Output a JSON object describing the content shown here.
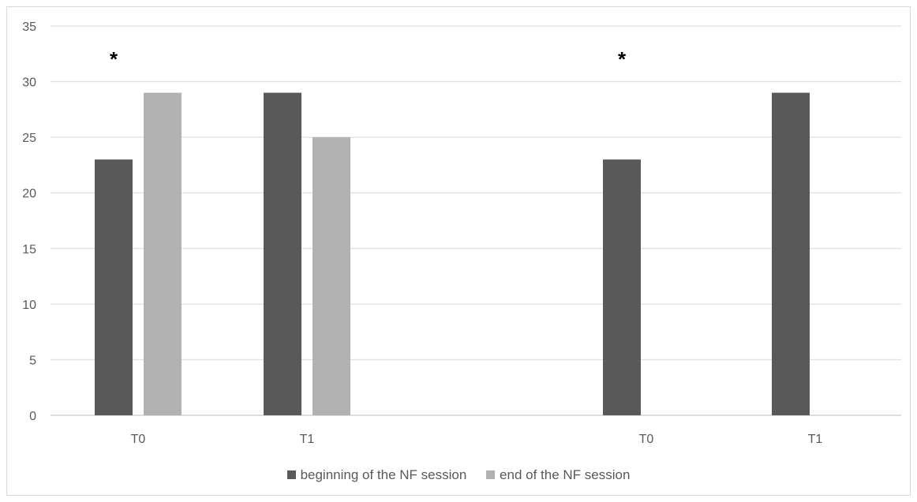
{
  "chart_data": {
    "type": "bar",
    "categories": [
      "T0",
      "T1",
      "T0",
      "T1"
    ],
    "series": [
      {
        "name": "beginning of the NF session",
        "color": "#595959",
        "values": [
          23,
          29,
          23,
          29
        ]
      },
      {
        "name": "end of the NF session",
        "color": "#b2b2b2",
        "values": [
          29,
          25,
          null,
          null
        ]
      }
    ],
    "ylim": [
      0,
      35
    ],
    "yticks": [
      0,
      5,
      10,
      15,
      20,
      25,
      30,
      35
    ],
    "grid": true,
    "legend": "bottom",
    "annotations": [
      {
        "text": "*",
        "category_index": 0
      },
      {
        "text": "*",
        "category_index": 2
      }
    ]
  }
}
